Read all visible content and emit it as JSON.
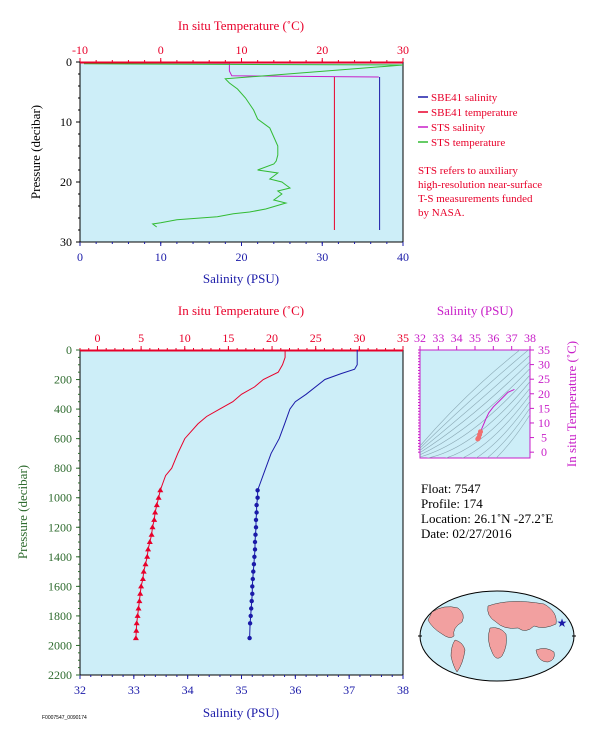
{
  "chart_data": [
    {
      "type": "line",
      "panel": "top",
      "top_axis": {
        "label": "In situ Temperature (˚C)",
        "range": [
          -10,
          30
        ],
        "ticks": [
          -10,
          0,
          10,
          20,
          30
        ]
      },
      "bottom_axis": {
        "label": "Salinity (PSU)",
        "range": [
          0,
          40
        ],
        "ticks": [
          0,
          10,
          20,
          30,
          40
        ]
      },
      "y_axis": {
        "label": "Pressure (decibar)",
        "range": [
          0,
          30
        ],
        "inverted": true,
        "ticks": [
          0,
          10,
          20,
          30
        ]
      },
      "legend": [
        {
          "label": "SBE41 salinity",
          "color": "#1a1aa8"
        },
        {
          "label": "SBE41 temperature",
          "color": "#e8002a"
        },
        {
          "label": "STS salinity",
          "color": "#c81ec8"
        },
        {
          "label": "STS temperature",
          "color": "#33bb33"
        }
      ],
      "note": [
        "STS refers to auxiliary",
        "high-resolution near-surface",
        "T-S measurements funded",
        "by NASA."
      ],
      "series": [
        {
          "name": "SBE41 salinity",
          "axis": "salinity",
          "x": [
            37.1,
            37.1
          ],
          "y": [
            2.5,
            28
          ]
        },
        {
          "name": "SBE41 temperature",
          "axis": "temperature",
          "x": [
            21.5,
            21.5
          ],
          "y": [
            2.5,
            28
          ]
        },
        {
          "name": "STS salinity",
          "axis": "salinity",
          "x": [
            0.5,
            18.5,
            18.5,
            18.8,
            37.0
          ],
          "y": [
            0.1,
            0.2,
            1.5,
            2.3,
            2.5
          ]
        },
        {
          "name": "STS temperature",
          "axis": "temperature",
          "x": [
            -9.5,
            30,
            8,
            8.5,
            9.5,
            10.5,
            11.5,
            12.0,
            13.5,
            14.0,
            14.5,
            14.5,
            14.3,
            14.0,
            12.0,
            14.5,
            13.5,
            15.0,
            15.5,
            16.0,
            14.5,
            15.0,
            14.0,
            15.5,
            13.0,
            11.0,
            9.0,
            7.0,
            2.0,
            0.0,
            -1.0,
            -0.5
          ],
          "y": [
            0.3,
            0.5,
            2.8,
            3.5,
            4.5,
            6.0,
            8.0,
            9.5,
            11.0,
            12.5,
            14.0,
            15.5,
            16.5,
            17.0,
            18.0,
            18.5,
            19.5,
            20.0,
            20.5,
            21.0,
            21.5,
            22.0,
            23.0,
            23.5,
            24.5,
            25.0,
            25.3,
            25.8,
            26.3,
            26.8,
            27.0,
            27.5
          ]
        }
      ]
    },
    {
      "type": "line",
      "panel": "main",
      "top_axis": {
        "label": "In situ Temperature (˚C)",
        "range": [
          -2,
          35
        ],
        "ticks": [
          0,
          5,
          10,
          15,
          20,
          25,
          30,
          35
        ]
      },
      "bottom_axis": {
        "label": "Salinity (PSU)",
        "range": [
          32,
          38
        ],
        "ticks": [
          32,
          33,
          34,
          35,
          36,
          37,
          38
        ]
      },
      "y_axis": {
        "label": "Pressure (decibar)",
        "range": [
          0,
          2200
        ],
        "inverted": true,
        "ticks": [
          0,
          200,
          400,
          600,
          800,
          1000,
          1200,
          1400,
          1600,
          1800,
          2000,
          2200
        ]
      },
      "series": [
        {
          "name": "Temperature",
          "axis": "temperature",
          "x": [
            21.5,
            21.5,
            21.2,
            21.0,
            20.7,
            19.0,
            18.0,
            16.5,
            15.5,
            14.0,
            12.5,
            11.5,
            10.0,
            9.2,
            8.5,
            7.8,
            7.5,
            7.2,
            7.0,
            6.8,
            6.6,
            6.5,
            6.3,
            6.2,
            6.0,
            5.8,
            5.7,
            5.5,
            5.3,
            5.2,
            5.0,
            4.9,
            4.8,
            4.7,
            4.6,
            4.5,
            4.45,
            4.4
          ],
          "y": [
            0,
            50,
            100,
            120,
            150,
            200,
            250,
            300,
            350,
            400,
            450,
            500,
            600,
            700,
            800,
            850,
            900,
            950,
            1000,
            1050,
            1100,
            1150,
            1200,
            1250,
            1300,
            1350,
            1400,
            1450,
            1500,
            1550,
            1600,
            1650,
            1700,
            1750,
            1800,
            1850,
            1900,
            1950
          ]
        },
        {
          "name": "Salinity",
          "axis": "salinity",
          "x": [
            37.15,
            37.15,
            37.1,
            36.85,
            36.55,
            36.2,
            36.0,
            35.9,
            35.8,
            35.7,
            35.55,
            35.45,
            35.4,
            35.35,
            35.3,
            35.3,
            35.28,
            35.28,
            35.27,
            35.27,
            35.26,
            35.25,
            35.25,
            35.24,
            35.23,
            35.22,
            35.21,
            35.2,
            35.2,
            35.19,
            35.18,
            35.17,
            35.16,
            35.15
          ],
          "y": [
            0,
            100,
            130,
            160,
            200,
            300,
            350,
            400,
            500,
            600,
            700,
            800,
            850,
            900,
            950,
            1000,
            1050,
            1100,
            1150,
            1200,
            1250,
            1300,
            1350,
            1400,
            1450,
            1500,
            1550,
            1600,
            1650,
            1700,
            1750,
            1800,
            1850,
            1950
          ]
        }
      ]
    },
    {
      "type": "scatter",
      "panel": "ts-inset",
      "top_axis": {
        "label": "Salinity (PSU)",
        "range": [
          32,
          38
        ],
        "ticks": [
          32,
          33,
          34,
          35,
          36,
          37,
          38
        ]
      },
      "right_axis": {
        "label": "In situ Temperature (˚C)",
        "range": [
          -2,
          35
        ],
        "ticks": [
          0,
          5,
          10,
          15,
          20,
          25,
          30,
          35
        ]
      },
      "series": [
        {
          "name": "T-S",
          "x": [
            37.15,
            36.8,
            36.4,
            36.0,
            35.75,
            35.6,
            35.5,
            35.4,
            35.3,
            35.25,
            35.2,
            35.15
          ],
          "y": [
            21.5,
            20.5,
            18.0,
            15.5,
            13.5,
            11.5,
            10.0,
            8.5,
            7.0,
            6.0,
            5.0,
            4.5
          ]
        }
      ]
    }
  ],
  "float_info": {
    "float": "Float:  7547",
    "profile": "Profile:  174",
    "location": "Location:  26.1˚N  -27.2˚E",
    "date": "Date:  02/27/2016"
  },
  "footer_code": "F0007547_0090174",
  "colors": {
    "panel_bg": "#cdeef8",
    "temp": "#e8002a",
    "sal": "#1a1aa8",
    "sts_sal": "#c81ec8",
    "sts_temp": "#33bb33",
    "axis_red": "#e8002a",
    "axis_blue": "#1a1aa8",
    "axis_green": "#2e6b2e",
    "magenta": "#c81ec8"
  }
}
